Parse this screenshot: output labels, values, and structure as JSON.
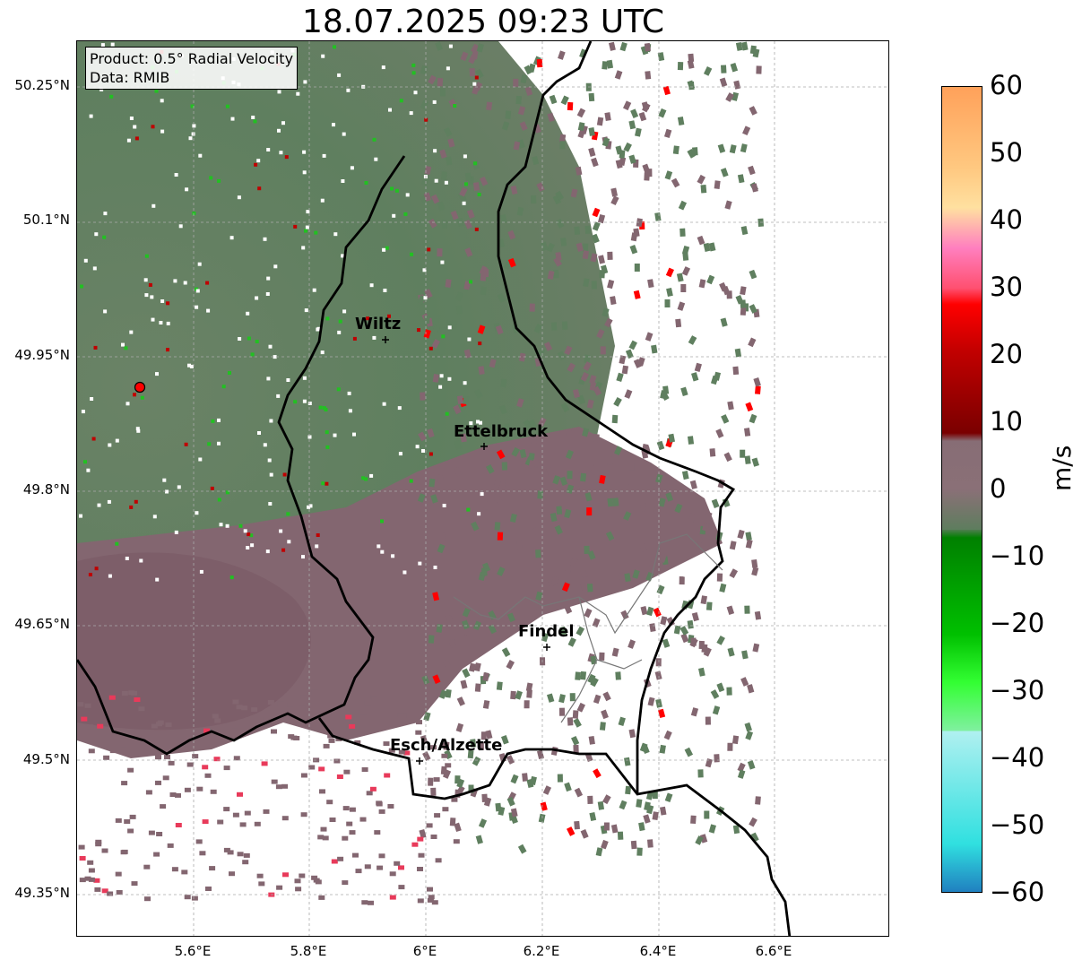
{
  "title": "18.07.2025 09:23 UTC",
  "info": {
    "product": "Product: 0.5° Radial Velocity",
    "data": "Data: RMIB"
  },
  "axes": {
    "lat_ticks": [
      "50.25°N",
      "50.1°N",
      "49.95°N",
      "49.8°N",
      "49.65°N",
      "49.5°N",
      "49.35°N"
    ],
    "lon_ticks": [
      "5.6°E",
      "5.8°E",
      "6°E",
      "6.2°E",
      "6.4°E",
      "6.6°E"
    ]
  },
  "cities": [
    {
      "name": "Wiltz"
    },
    {
      "name": "Ettelbruck"
    },
    {
      "name": "Findel"
    },
    {
      "name": "Esch/Alzette"
    }
  ],
  "colorbar": {
    "label": "m/s",
    "ticks": [
      "60",
      "50",
      "40",
      "30",
      "20",
      "10",
      "0",
      "−10",
      "−20",
      "−30",
      "−40",
      "−50",
      "−60"
    ],
    "colors": {
      "pos_high": "#ffa15a",
      "pos_orange": "#ffc880",
      "pos_pink": "#ff7fbf",
      "pos_red": "#ff0000",
      "pos_darkred": "#7a0000",
      "near_zero_pos": "#876d75",
      "near_zero_neg": "#5e7d5e",
      "neg_green": "#008000",
      "neg_bright": "#33ff33",
      "neg_cyan": "#30e0e0",
      "neg_blue": "#2080c0"
    }
  },
  "colors": {
    "green_field": "#5f7f5f",
    "mauve_field": "#836670",
    "radar_marker": "#ff0000"
  }
}
